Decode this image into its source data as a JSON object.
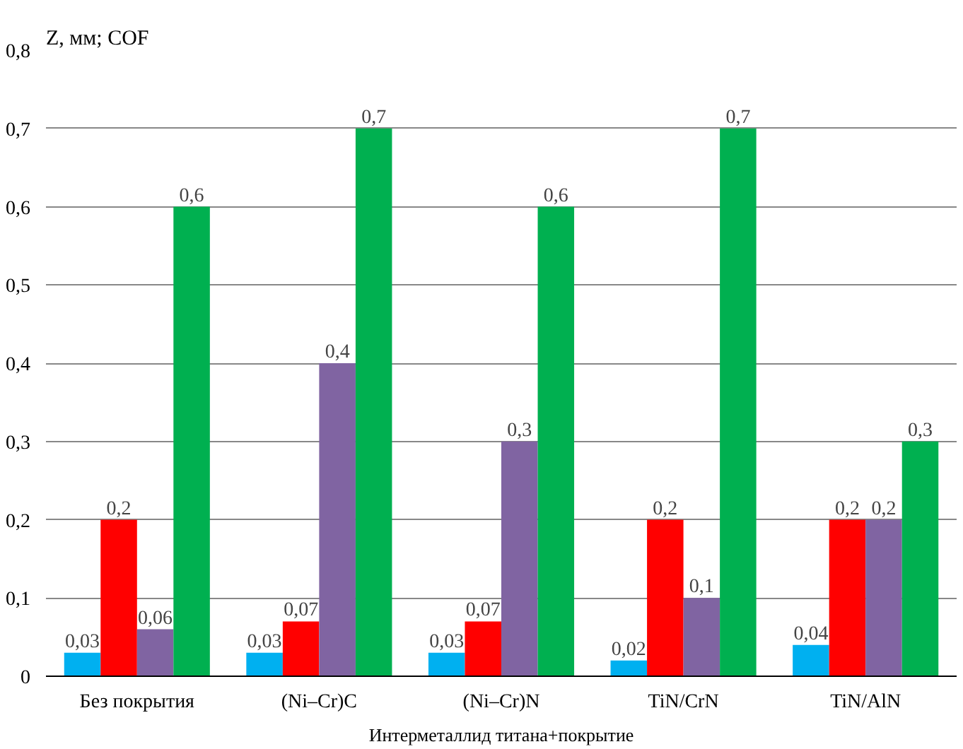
{
  "chart_data": {
    "type": "bar",
    "ylabel": "Z, мм; COF",
    "xlabel": "Интерметаллид титана+покрытие",
    "categories": [
      "Без покрытия",
      "(Ni–Cr)C",
      "(Ni–Cr)N",
      "TiN/CrN",
      "TiN/AlN"
    ],
    "series": [
      {
        "color": "#00b0f0",
        "values": [
          0.03,
          0.03,
          0.03,
          0.02,
          0.04
        ],
        "value_labels": [
          "0,03",
          "0,03",
          "0,03",
          "0,02",
          "0,04"
        ]
      },
      {
        "color": "#ff0000",
        "values": [
          0.2,
          0.07,
          0.07,
          0.2,
          0.2
        ],
        "value_labels": [
          "0,2",
          "0,07",
          "0,07",
          "0,2",
          "0,2"
        ]
      },
      {
        "color": "#8064a2",
        "values": [
          0.06,
          0.4,
          0.3,
          0.1,
          0.2
        ],
        "value_labels": [
          "0,06",
          "0,4",
          "0,3",
          "0,1",
          "0,2"
        ]
      },
      {
        "color": "#00b050",
        "values": [
          0.6,
          0.7,
          0.6,
          0.7,
          0.3
        ],
        "value_labels": [
          "0,6",
          "0,7",
          "0,6",
          "0,7",
          "0,3"
        ]
      }
    ],
    "ylim": [
      0,
      0.8
    ],
    "yticks": [
      {
        "value": 0,
        "label": "0"
      },
      {
        "value": 0.1,
        "label": "0,1"
      },
      {
        "value": 0.2,
        "label": "0,2"
      },
      {
        "value": 0.3,
        "label": "0,3"
      },
      {
        "value": 0.4,
        "label": "0,4"
      },
      {
        "value": 0.5,
        "label": "0,5"
      },
      {
        "value": 0.6,
        "label": "0,6"
      },
      {
        "value": 0.7,
        "label": "0,7"
      },
      {
        "value": 0.8,
        "label": "0,8"
      }
    ],
    "grid": "y"
  }
}
